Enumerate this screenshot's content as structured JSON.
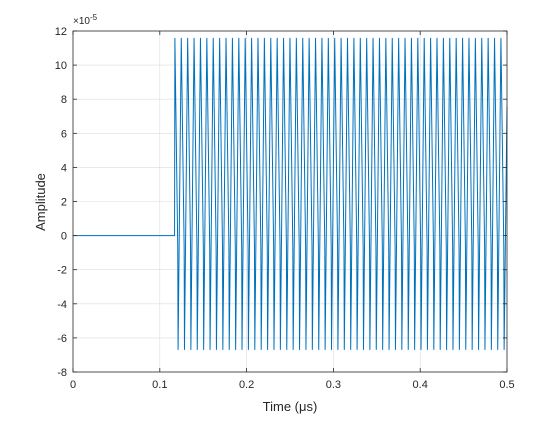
{
  "chart_data": {
    "type": "line",
    "xlabel": "Time  (μs)",
    "ylabel": "Amplitude",
    "y_exponent_label": "×10",
    "y_exponent_power": "-5",
    "xlim": [
      0,
      0.5
    ],
    "ylim": [
      -8,
      12
    ],
    "x_ticks": [
      0,
      0.1,
      0.2,
      0.3,
      0.4,
      0.5
    ],
    "x_tick_labels": [
      "0",
      "0.1",
      "0.2",
      "0.3",
      "0.4",
      "0.5"
    ],
    "y_ticks": [
      -8,
      -6,
      -4,
      -2,
      0,
      2,
      4,
      6,
      8,
      10,
      12
    ],
    "y_tick_labels": [
      "-8",
      "-6",
      "-4",
      "-2",
      "0",
      "2",
      "4",
      "6",
      "8",
      "10",
      "12"
    ],
    "grid": true,
    "series": [
      {
        "color": "#0072bd",
        "flat_segment": {
          "x": [
            0,
            0.117
          ],
          "y": 0
        },
        "oscillation": {
          "x_start": 0.117,
          "x_end": 0.5,
          "cycles": 52,
          "y_max": 11.6,
          "y_min": -6.7,
          "y_inner_min": -0.7
        }
      }
    ]
  }
}
